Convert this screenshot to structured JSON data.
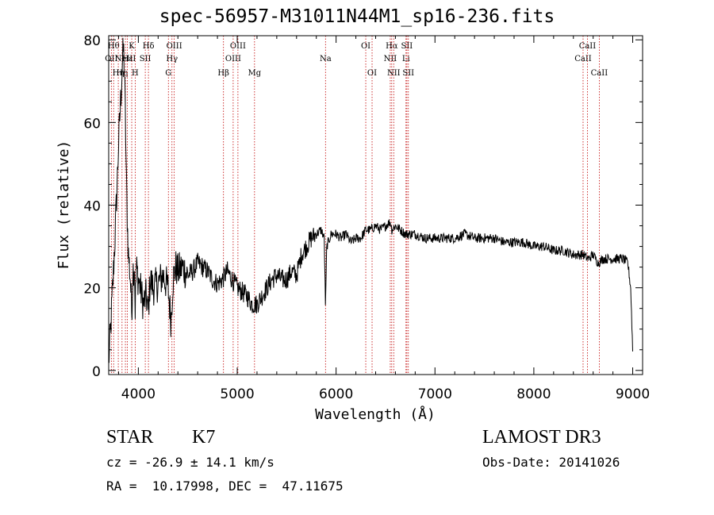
{
  "figure": {
    "title": "spec-56957-M31011N44M1_sp16-236.fits",
    "object_class": "STAR",
    "subclass": "K7",
    "survey": "LAMOST DR3",
    "cz": "cz = -26.9 ± 14.1 km/s",
    "obs_date": "Obs-Date: 20141026",
    "coords": "RA =  10.17998, DEC =  47.11675"
  },
  "chart_data": {
    "type": "line",
    "title": "spec-56957-M31011N44M1_sp16-236.fits",
    "xlabel": "Wavelength (Å)",
    "ylabel": "Flux (relative)",
    "xlim": [
      3700,
      9100
    ],
    "ylim": [
      -1,
      81
    ],
    "xticks": [
      4000,
      5000,
      6000,
      7000,
      8000,
      9000
    ],
    "yticks": [
      0,
      20,
      40,
      60,
      80
    ],
    "line_color": "#000000",
    "marker_color": "#c00000",
    "series": [
      {
        "x": [
          3700,
          3720,
          3740,
          3760,
          3780,
          3800,
          3820,
          3840,
          3850,
          3860,
          3870,
          3880,
          3890,
          3900,
          3910,
          3920,
          3933,
          3945,
          3960,
          3968,
          3980,
          4000,
          4020,
          4050,
          4080,
          4100,
          4120,
          4150,
          4200,
          4250,
          4300,
          4330,
          4350,
          4380,
          4400,
          4450,
          4500,
          4550,
          4600,
          4650,
          4700,
          4750,
          4800,
          4850,
          4900,
          4950,
          5000,
          5050,
          5100,
          5150,
          5200,
          5250,
          5300,
          5350,
          5400,
          5450,
          5500,
          5550,
          5600,
          5650,
          5700,
          5750,
          5800,
          5850,
          5880,
          5893,
          5905,
          5950,
          6000,
          6050,
          6100,
          6150,
          6200,
          6250,
          6300,
          6350,
          6400,
          6450,
          6500,
          6550,
          6563,
          6600,
          6650,
          6700,
          6750,
          6800,
          6900,
          7000,
          7100,
          7200,
          7300,
          7400,
          7500,
          7600,
          7700,
          7800,
          7900,
          8000,
          8100,
          8200,
          8300,
          8400,
          8500,
          8550,
          8600,
          8650,
          8700,
          8800,
          8900,
          8950,
          8980,
          9000
        ],
        "y": [
          2,
          10,
          20,
          30,
          42,
          55,
          65,
          75,
          78,
          72,
          60,
          45,
          35,
          28,
          25,
          22,
          14,
          24,
          26,
          15,
          25,
          22,
          20,
          16,
          18,
          14,
          22,
          20,
          21,
          23,
          20,
          12,
          22,
          25,
          24,
          25,
          23,
          24,
          26,
          25,
          24,
          22,
          21,
          22,
          24,
          22,
          20,
          19,
          18,
          16,
          16,
          18,
          20,
          22,
          23,
          22,
          22,
          24,
          23,
          28,
          30,
          32,
          33,
          34,
          32,
          15,
          30,
          33,
          33,
          32,
          33,
          31,
          32,
          32,
          34,
          34,
          35,
          34,
          35,
          36,
          34,
          35,
          34,
          33,
          33,
          33,
          32,
          32,
          32,
          32,
          33,
          32,
          32,
          32,
          31,
          31,
          31,
          30,
          30,
          29,
          29,
          28,
          28,
          27,
          28,
          26,
          27,
          27,
          27,
          26,
          20,
          5
        ]
      }
    ],
    "line_markers": [
      {
        "x": 3727,
        "label": "OII",
        "row": 1
      },
      {
        "x": 3750,
        "label": "Hθ",
        "row": 0
      },
      {
        "x": 3797,
        "label": "Hη",
        "row": 2
      },
      {
        "x": 3835,
        "label": "Hη",
        "row": 2
      },
      {
        "x": 3869,
        "label": "NeIII",
        "row": 1
      },
      {
        "x": 3889,
        "label": "Hε",
        "row": 1
      },
      {
        "x": 3933,
        "label": "K",
        "row": 0
      },
      {
        "x": 3968,
        "label": "H",
        "row": 2
      },
      {
        "x": 4070,
        "label": "SII",
        "row": 1
      },
      {
        "x": 4102,
        "label": "Hδ",
        "row": 0
      },
      {
        "x": 4304,
        "label": "G",
        "row": 2
      },
      {
        "x": 4340,
        "label": "Hγ",
        "row": 1
      },
      {
        "x": 4363,
        "label": "OIII",
        "row": 0
      },
      {
        "x": 4861,
        "label": "Hβ",
        "row": 2
      },
      {
        "x": 4959,
        "label": "OIII",
        "row": 1
      },
      {
        "x": 5007,
        "label": "OIII",
        "row": 0
      },
      {
        "x": 5175,
        "label": "Mg",
        "row": 2
      },
      {
        "x": 5893,
        "label": "Na",
        "row": 1
      },
      {
        "x": 6300,
        "label": "OI",
        "row": 0
      },
      {
        "x": 6364,
        "label": "OI",
        "row": 2
      },
      {
        "x": 6548,
        "label": "NII",
        "row": 1
      },
      {
        "x": 6563,
        "label": "Hα",
        "row": 0
      },
      {
        "x": 6583,
        "label": "NII",
        "row": 2
      },
      {
        "x": 6707,
        "label": "Li",
        "row": 1
      },
      {
        "x": 6716,
        "label": "SII",
        "row": 0
      },
      {
        "x": 6731,
        "label": "SII",
        "row": 2
      },
      {
        "x": 8498,
        "label": "CaII",
        "row": 1
      },
      {
        "x": 8542,
        "label": "CaII",
        "row": 0
      },
      {
        "x": 8662,
        "label": "CaII",
        "row": 2
      }
    ]
  }
}
